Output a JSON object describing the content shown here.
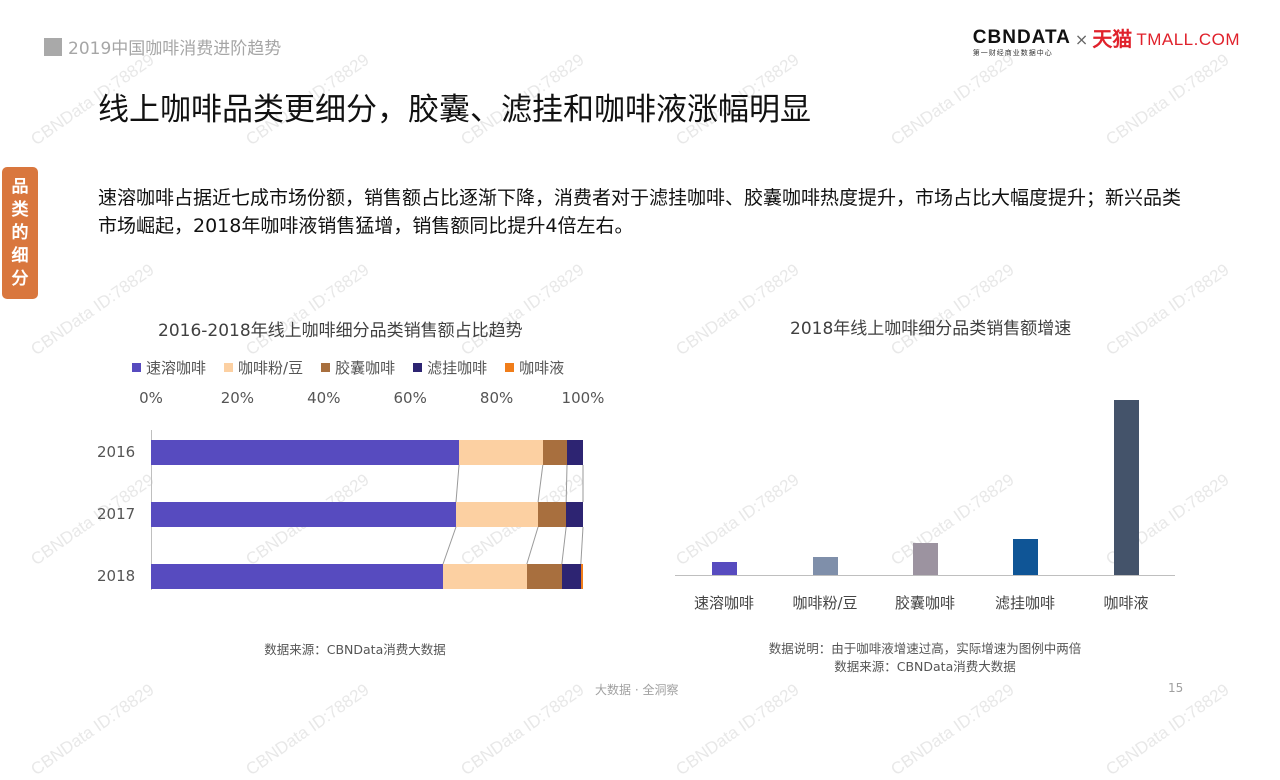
{
  "header": {
    "section_title": "2019中国咖啡消费进阶趋势",
    "logo_cbn": "CBNDATA",
    "logo_cbn_sub": "第一财经商业数据中心",
    "logo_x": "×",
    "logo_tmall_cn": "天猫",
    "logo_tmall_en": "TMALL.COM"
  },
  "side_tab": {
    "chars": [
      "品",
      "类",
      "的",
      "细",
      "分"
    ],
    "color": "#d9773e"
  },
  "headline": "线上咖啡品类更细分，胶囊、滤挂和咖啡液涨幅明显",
  "description": "速溶咖啡占据近七成市场份额，销售额占比逐渐下降，消费者对于滤挂咖啡、胶囊咖啡热度提升，市场占比大幅度提升；新兴品类市场崛起，2018年咖啡液销售猛增，销售额同比提升4倍左右。",
  "chart_data": [
    {
      "type": "bar",
      "orientation": "horizontal",
      "stacked": "100%",
      "title": "2016-2018年线上咖啡细分品类销售额占比趋势",
      "categories": [
        "2016",
        "2017",
        "2018"
      ],
      "series": [
        {
          "name": "速溶咖啡",
          "color": "#574bbf",
          "values": [
            71.3,
            70.6,
            67.6
          ]
        },
        {
          "name": "咖啡粉/豆",
          "color": "#fcd0a2",
          "values": [
            19.4,
            19.0,
            19.4
          ]
        },
        {
          "name": "胶囊咖啡",
          "color": "#a86f3e",
          "values": [
            5.6,
            6.5,
            8.1
          ]
        },
        {
          "name": "滤挂咖啡",
          "color": "#2d2472",
          "values": [
            3.7,
            3.9,
            4.4
          ]
        },
        {
          "name": "咖啡液",
          "color": "#f07d1a",
          "values": [
            0.0,
            0.0,
            0.5
          ]
        }
      ],
      "x_ticks": [
        "0%",
        "20%",
        "40%",
        "60%",
        "80%",
        "100%"
      ],
      "xlim": [
        0,
        100
      ],
      "legend_position": "top",
      "grid": false,
      "source": "数据来源：CBNData消费大数据"
    },
    {
      "type": "bar",
      "orientation": "vertical",
      "title": "2018年线上咖啡细分品类销售额增速",
      "categories": [
        "速溶咖啡",
        "咖啡粉/豆",
        "胶囊咖啡",
        "滤挂咖啡",
        "咖啡液"
      ],
      "values": [
        13,
        18,
        32,
        36,
        175
      ],
      "colors": [
        "#574bbf",
        "#7f8faa",
        "#9c93a0",
        "#0f5596",
        "#44536a"
      ],
      "y_axis_shown": false,
      "note": "数据说明：由于咖啡液增速过高，实际增速为图例中两倍",
      "source": "数据来源：CBNData消费大数据"
    }
  ],
  "footer": {
    "tagline": "大数据 · 全洞察",
    "page_number": "15"
  },
  "watermark": "CBNData ID:78829"
}
